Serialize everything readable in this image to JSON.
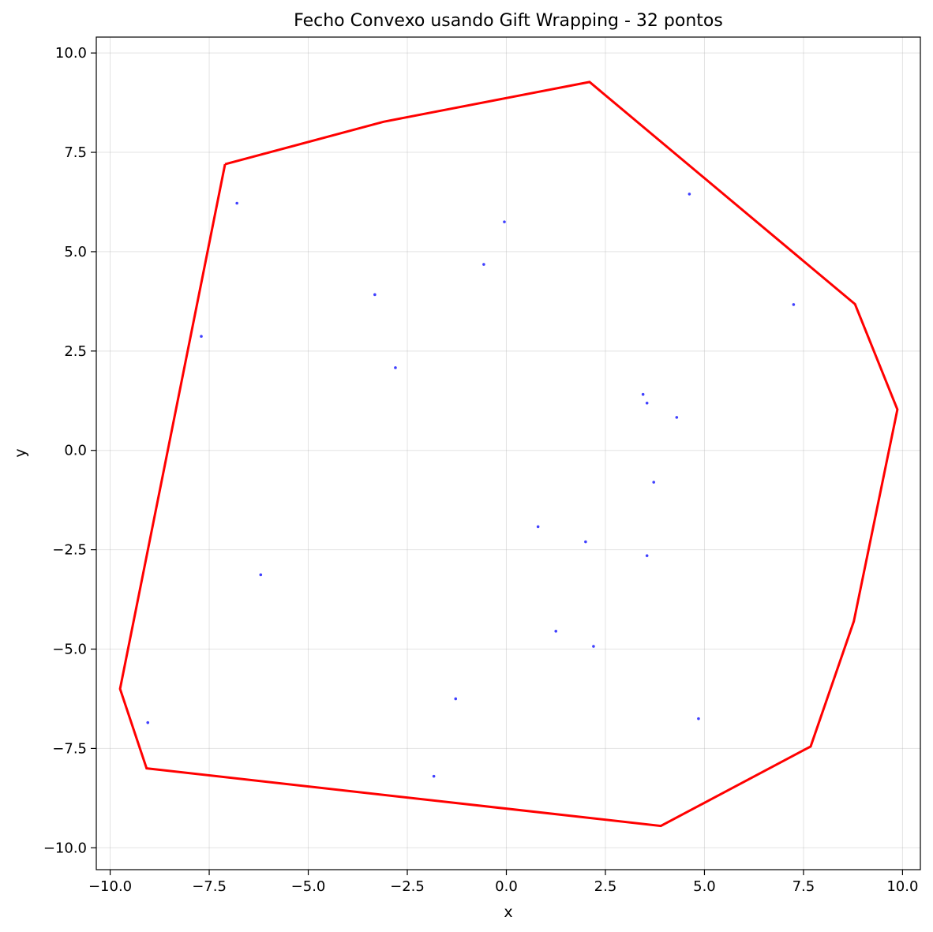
{
  "chart_data": {
    "type": "scatter",
    "title": "Fecho Convexo usando Gift Wrapping - 32 pontos",
    "xlabel": "x",
    "ylabel": "y",
    "xlim": [
      -10.35,
      10.45
    ],
    "ylim": [
      -10.55,
      10.4
    ],
    "grid": true,
    "xticks": [
      -10.0,
      -7.5,
      -5.0,
      -2.5,
      0.0,
      2.5,
      5.0,
      7.5,
      10.0
    ],
    "xtick_labels": [
      "−10.0",
      "−7.5",
      "−5.0",
      "−2.5",
      "0.0",
      "2.5",
      "5.0",
      "7.5",
      "10.0"
    ],
    "yticks": [
      -10.0,
      -7.5,
      -5.0,
      -2.5,
      0.0,
      2.5,
      5.0,
      7.5,
      10.0
    ],
    "ytick_labels": [
      "−10.0",
      "−7.5",
      "−5.0",
      "−2.5",
      "0.0",
      "2.5",
      "5.0",
      "7.5",
      "10.0"
    ],
    "series": [
      {
        "kind": "points",
        "color": "#0000ff",
        "points": [
          [
            -6.8,
            6.22
          ],
          [
            -0.05,
            5.75
          ],
          [
            4.62,
            6.45
          ],
          [
            -0.57,
            4.68
          ],
          [
            -3.32,
            3.92
          ],
          [
            7.25,
            3.67
          ],
          [
            -7.7,
            2.87
          ],
          [
            -2.8,
            2.08
          ],
          [
            3.45,
            1.41
          ],
          [
            3.55,
            1.19
          ],
          [
            4.3,
            0.83
          ],
          [
            3.72,
            -0.8
          ],
          [
            0.8,
            -1.92
          ],
          [
            2.0,
            -2.3
          ],
          [
            3.55,
            -2.65
          ],
          [
            -6.2,
            -3.13
          ],
          [
            1.25,
            -4.55
          ],
          [
            2.2,
            -4.93
          ],
          [
            -1.28,
            -6.25
          ],
          [
            4.85,
            -6.75
          ],
          [
            -9.05,
            -6.85
          ],
          [
            -1.83,
            -8.2
          ]
        ]
      },
      {
        "kind": "hull",
        "color": "#ff0000",
        "points": [
          [
            -7.1,
            7.2
          ],
          [
            -3.1,
            8.27
          ],
          [
            2.1,
            9.27
          ],
          [
            8.8,
            3.68
          ],
          [
            9.87,
            1.03
          ],
          [
            8.77,
            -4.3
          ],
          [
            7.68,
            -7.45
          ],
          [
            3.9,
            -9.45
          ],
          [
            -9.08,
            -8.0
          ],
          [
            -9.75,
            -6.0
          ],
          [
            -7.1,
            7.2
          ]
        ]
      }
    ]
  }
}
